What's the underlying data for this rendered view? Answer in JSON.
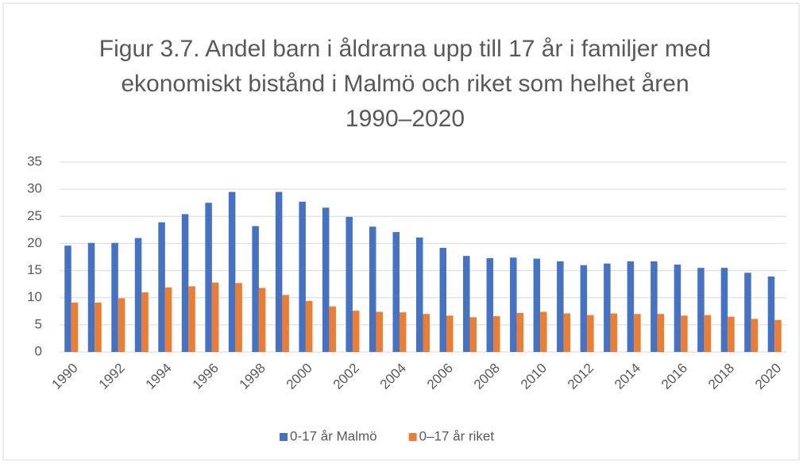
{
  "chart_data": {
    "type": "bar",
    "title": "Figur 3.7. Andel barn i åldrarna upp till 17 år i familjer med ekonomiskt bistånd i Malmö och riket som helhet åren 1990–2020",
    "categories": [
      "1990",
      null,
      "1992",
      null,
      "1994",
      null,
      "1996",
      null,
      "1998",
      null,
      "2000",
      null,
      "2002",
      null,
      "2004",
      null,
      "2006",
      null,
      "2008",
      null,
      "2010",
      null,
      "2012",
      null,
      "2014",
      null,
      "2016",
      null,
      "2018",
      null,
      "2020"
    ],
    "series": [
      {
        "name": "0-17 år Malmö",
        "color": "#4472c4",
        "values": [
          19.6,
          20.1,
          20.1,
          21.0,
          23.9,
          25.4,
          27.5,
          29.5,
          23.2,
          29.5,
          27.7,
          26.6,
          24.9,
          23.1,
          22.1,
          21.1,
          19.2,
          17.7,
          17.3,
          17.4,
          17.2,
          16.7,
          16.0,
          16.3,
          16.7,
          16.7,
          16.1,
          15.5,
          15.5,
          14.6,
          13.9
        ]
      },
      {
        "name": "0–17 år riket",
        "color": "#ed7d31",
        "values": [
          9.1,
          9.1,
          9.9,
          11.0,
          11.9,
          12.1,
          12.8,
          12.7,
          11.8,
          10.5,
          9.4,
          8.4,
          7.6,
          7.4,
          7.3,
          7.0,
          6.7,
          6.4,
          6.6,
          7.2,
          7.4,
          7.1,
          6.8,
          7.1,
          7.0,
          7.0,
          6.7,
          6.8,
          6.5,
          6.1,
          5.9
        ]
      }
    ],
    "ylim": [
      0,
      35
    ],
    "yticks": [
      0,
      5,
      10,
      15,
      20,
      25,
      30,
      35
    ],
    "grid": true,
    "legend": "bottom"
  }
}
